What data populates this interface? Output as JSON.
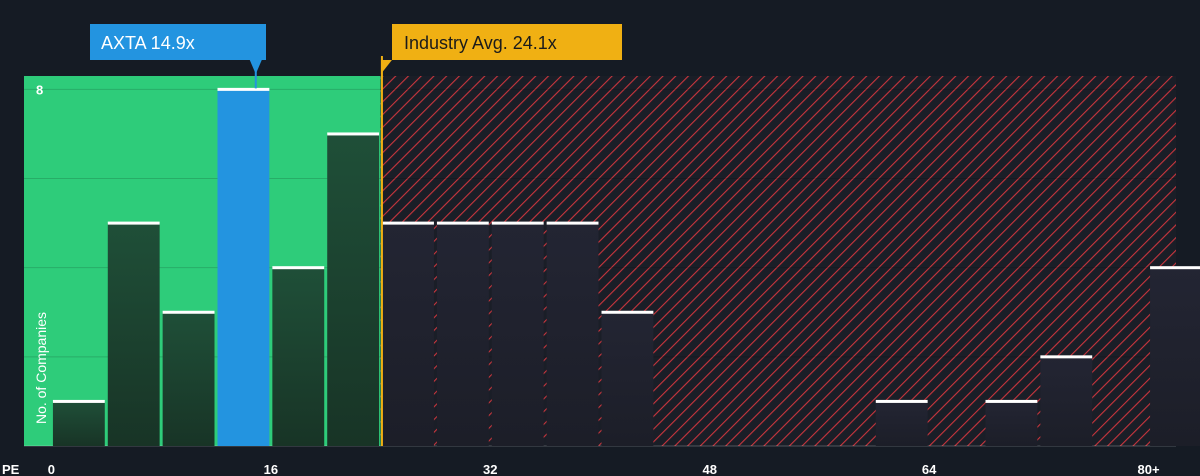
{
  "chart_data": {
    "type": "bar",
    "xlabel": "PE",
    "ylabel": "No. of Companies",
    "x_ticks": [
      "0",
      "16",
      "32",
      "48",
      "64",
      "80+"
    ],
    "x_tick_values": [
      0,
      16,
      32,
      48,
      64,
      80
    ],
    "y_ticks": [
      "8"
    ],
    "y_tick_values": [
      8
    ],
    "xlim": [
      -2,
      82
    ],
    "ylim": [
      0,
      8.3
    ],
    "bin_width": 4,
    "grid": true,
    "bins": [
      {
        "start": 0,
        "value": 1
      },
      {
        "start": 4,
        "value": 5
      },
      {
        "start": 8,
        "value": 3
      },
      {
        "start": 12,
        "value": 8,
        "highlight": true
      },
      {
        "start": 16,
        "value": 4
      },
      {
        "start": 20,
        "value": 7
      },
      {
        "start": 24,
        "value": 5
      },
      {
        "start": 28,
        "value": 5
      },
      {
        "start": 32,
        "value": 5
      },
      {
        "start": 36,
        "value": 5
      },
      {
        "start": 40,
        "value": 3
      },
      {
        "start": 44,
        "value": 0
      },
      {
        "start": 48,
        "value": 0
      },
      {
        "start": 52,
        "value": 0
      },
      {
        "start": 56,
        "value": 0
      },
      {
        "start": 60,
        "value": 1
      },
      {
        "start": 64,
        "value": 0
      },
      {
        "start": 68,
        "value": 1
      },
      {
        "start": 72,
        "value": 2
      },
      {
        "start": 76,
        "value": 0
      },
      {
        "start": 80,
        "value": 4
      }
    ],
    "company": {
      "label": "AXTA 14.9x",
      "value": 14.9
    },
    "industry": {
      "label": "Industry Avg. 24.1x",
      "value": 24.1
    },
    "colors": {
      "background": "#151b24",
      "undervalued_zone": "#2ecc7a",
      "overvalued_hatch": "#c9353d",
      "bar_dark": "#1e4b35",
      "bar_highlight": "#2394e0",
      "callout_company": "#2394e0",
      "callout_industry": "#f0b013",
      "bar_cap": "#ffffff"
    }
  }
}
